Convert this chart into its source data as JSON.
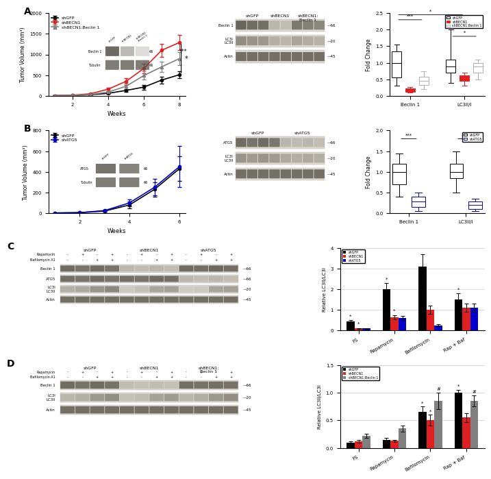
{
  "fig_width": 6.5,
  "fig_height": 6.54,
  "bg_color": "#ffffff",
  "panel_A": {
    "line_data": {
      "weeks": [
        1,
        2,
        3,
        4,
        5,
        6,
        7,
        8
      ],
      "shGFP_mean": [
        5,
        10,
        25,
        60,
        130,
        210,
        380,
        510
      ],
      "shGFP_err": [
        2,
        3,
        8,
        20,
        40,
        60,
        80,
        90
      ],
      "shBECN1_mean": [
        5,
        15,
        50,
        160,
        350,
        660,
        1100,
        1290
      ],
      "shBECN1_err": [
        2,
        5,
        15,
        40,
        80,
        120,
        150,
        180
      ],
      "shBECN1B1_mean": [
        5,
        10,
        30,
        90,
        230,
        490,
        700,
        900
      ],
      "shBECN1B1_err": [
        2,
        3,
        10,
        30,
        70,
        100,
        130,
        160
      ]
    },
    "ylabel": "Tumor Volume (mm³)",
    "xlabel": "Weeks",
    "ylim": [
      0,
      2000
    ],
    "yticks": [
      0,
      500,
      1000,
      1500,
      2000
    ],
    "xticks": [
      2,
      4,
      6,
      8
    ],
    "colors": {
      "shGFP": "#000000",
      "shBECN1": "#e02020",
      "shBECN1B1": "#808080"
    }
  },
  "panel_A_box": {
    "categories": [
      "Beclin 1",
      "LC3II/I"
    ],
    "shGFP_boxes": {
      "Beclin1": {
        "q1": 0.55,
        "median": 1.0,
        "q3": 1.35,
        "whislo": 0.3,
        "whishi": 1.55
      },
      "LC3II_I": {
        "q1": 0.7,
        "median": 0.88,
        "q3": 1.1,
        "whislo": 0.4,
        "whishi": 2.0
      }
    },
    "shBECN1_boxes": {
      "Beclin1": {
        "q1": 0.13,
        "median": 0.18,
        "q3": 0.23,
        "whislo": 0.1,
        "whishi": 0.27
      },
      "LC3II_I": {
        "q1": 0.45,
        "median": 0.55,
        "q3": 0.62,
        "whislo": 0.3,
        "whishi": 0.7
      }
    },
    "shBECN1B1_boxes": {
      "Beclin1": {
        "q1": 0.32,
        "median": 0.45,
        "q3": 0.58,
        "whislo": 0.2,
        "whishi": 0.75
      },
      "LC3II_I": {
        "q1": 0.7,
        "median": 0.88,
        "q3": 1.0,
        "whislo": 0.5,
        "whishi": 1.1
      }
    },
    "ylabel": "Fold Change",
    "ylim": [
      0.0,
      2.5
    ],
    "yticks": [
      0.0,
      0.5,
      1.0,
      1.5,
      2.0,
      2.5
    ],
    "colors": {
      "shGFP": "#000000",
      "shBECN1": "#e02020",
      "shBECN1B1": "#b0b0b0"
    }
  },
  "panel_B": {
    "line_data": {
      "weeks": [
        1,
        2,
        3,
        4,
        5,
        6
      ],
      "shGFP_mean": [
        2,
        5,
        20,
        80,
        230,
        430
      ],
      "shGFP_err": [
        1,
        2,
        8,
        30,
        70,
        120
      ],
      "shATG5_mean": [
        2,
        5,
        25,
        100,
        250,
        450
      ],
      "shATG5_err": [
        1,
        2,
        10,
        35,
        80,
        200
      ]
    },
    "ylabel": "Tumor Volume (mm³)",
    "xlabel": "Weeks",
    "ylim": [
      0,
      800
    ],
    "yticks": [
      0,
      200,
      400,
      600,
      800
    ],
    "xticks": [
      2,
      4,
      6
    ],
    "colors": {
      "shGFP": "#000000",
      "shATG5": "#0000cc"
    }
  },
  "panel_B_box": {
    "shGFP_boxes": {
      "Beclin1": {
        "q1": 0.7,
        "median": 1.0,
        "q3": 1.2,
        "whislo": 0.4,
        "whishi": 1.45
      },
      "LC3II_I": {
        "q1": 0.85,
        "median": 1.0,
        "q3": 1.2,
        "whislo": 0.5,
        "whishi": 1.5
      }
    },
    "shATG5_boxes": {
      "Beclin1": {
        "q1": 0.15,
        "median": 0.28,
        "q3": 0.4,
        "whislo": 0.05,
        "whishi": 0.5
      },
      "LC3II_I": {
        "q1": 0.1,
        "median": 0.2,
        "q3": 0.28,
        "whislo": 0.05,
        "whishi": 0.35
      }
    },
    "ylabel": "Fold Change",
    "ylim": [
      0.0,
      2.0
    ],
    "yticks": [
      0.0,
      0.5,
      1.0,
      1.5,
      2.0
    ],
    "colors": {
      "shGFP": "#000000",
      "shATG5": "#0000cc"
    }
  },
  "panel_C_bar": {
    "groups": [
      "FS",
      "Rapamycin",
      "Bafilomycin",
      "Rap + Baf"
    ],
    "shGFP": [
      0.45,
      2.0,
      3.1,
      1.5
    ],
    "shBECN1": [
      0.1,
      0.65,
      1.0,
      1.1
    ],
    "shATG5": [
      0.1,
      0.6,
      0.25,
      1.1
    ],
    "shGFP_err": [
      0.05,
      0.3,
      0.6,
      0.3
    ],
    "shBECN1_err": [
      0.02,
      0.1,
      0.2,
      0.2
    ],
    "shATG5_err": [
      0.02,
      0.1,
      0.05,
      0.2
    ],
    "ylabel": "Relative LC3II/LC3I",
    "ylim": [
      0,
      4
    ],
    "yticks": [
      0,
      1,
      2,
      3,
      4
    ],
    "colors": {
      "shGFP": "#000000",
      "shBECN1": "#e02020",
      "shATG5": "#0000cc"
    }
  },
  "panel_D_bar": {
    "groups": [
      "FS",
      "Rapamycin",
      "Bafilomycin",
      "Rap + Baf"
    ],
    "shGFP": [
      0.1,
      0.15,
      0.65,
      1.0
    ],
    "shBECN1": [
      0.12,
      0.13,
      0.5,
      0.55
    ],
    "shBECN1B1": [
      0.22,
      0.35,
      0.85,
      0.85
    ],
    "shGFP_err": [
      0.02,
      0.03,
      0.1,
      0.05
    ],
    "shBECN1_err": [
      0.02,
      0.02,
      0.1,
      0.08
    ],
    "shBECN1B1_err": [
      0.04,
      0.06,
      0.15,
      0.1
    ],
    "ylabel": "Relative LC3II/LC3I",
    "ylim": [
      0,
      1.5
    ],
    "yticks": [
      0.0,
      0.5,
      1.0,
      1.5
    ],
    "colors": {
      "shGFP": "#000000",
      "shBECN1": "#e02020",
      "shBECN1B1": "#808080"
    }
  },
  "wb_bg": "#f0ece6",
  "wb_band_color": "#555048",
  "wb_row_bg": "#ddd8d0"
}
